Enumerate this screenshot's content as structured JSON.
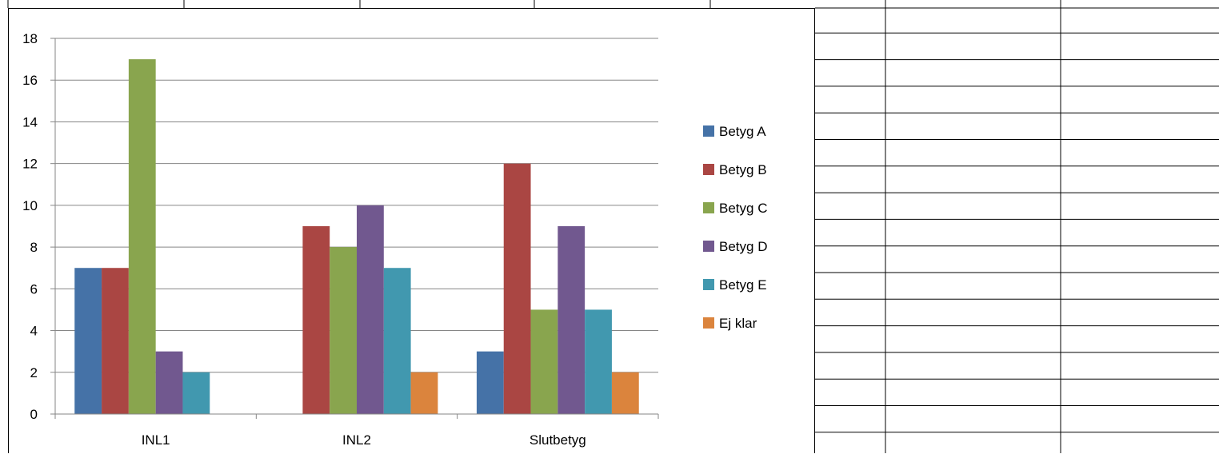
{
  "chart_data": {
    "type": "bar",
    "title": "",
    "xlabel": "",
    "ylabel": "",
    "categories": [
      "INL1",
      "INL2",
      "Slutbetyg"
    ],
    "ylim": [
      0,
      18
    ],
    "yticks": [
      0,
      2,
      4,
      6,
      8,
      10,
      12,
      14,
      16,
      18
    ],
    "grid": true,
    "legend_position": "right",
    "series": [
      {
        "name": "Betyg A",
        "color": "#4572A7",
        "values": [
          7,
          0,
          3
        ]
      },
      {
        "name": "Betyg B",
        "color": "#AA4643",
        "values": [
          7,
          9,
          12
        ]
      },
      {
        "name": "Betyg C",
        "color": "#89A54E",
        "values": [
          17,
          8,
          5
        ]
      },
      {
        "name": "Betyg D",
        "color": "#71588F",
        "values": [
          3,
          10,
          9
        ]
      },
      {
        "name": "Betyg E",
        "color": "#4198AF",
        "values": [
          2,
          7,
          5
        ]
      },
      {
        "name": "Ej klar",
        "color": "#DB843D",
        "values": [
          0,
          2,
          2
        ]
      }
    ]
  }
}
